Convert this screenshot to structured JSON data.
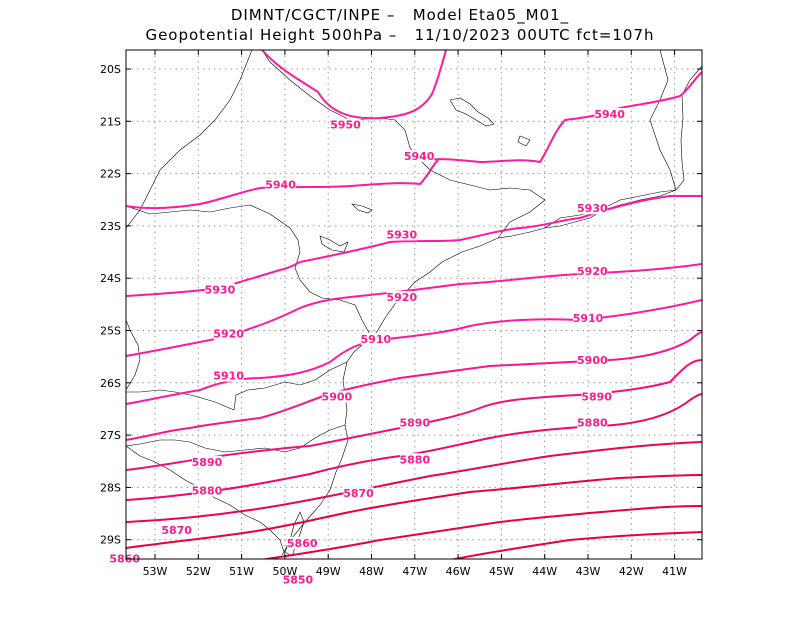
{
  "title": {
    "line1": "DIMNT/CGCT/INPE –   Model Eta05_M01_",
    "line2": "Geopotential Height 500hPa –   11/10/2023 00UTC fct=107h"
  },
  "colors": {
    "contour_high": "#ff1a9c",
    "contour_low": "#e8003c",
    "coast": "#000000",
    "grid": "#999999"
  },
  "axes": {
    "lat_labels": [
      "20S",
      "21S",
      "22S",
      "23S",
      "24S",
      "25S",
      "26S",
      "27S",
      "28S",
      "29S"
    ],
    "lon_labels": [
      "53W",
      "52W",
      "51W",
      "50W",
      "49W",
      "48W",
      "47W",
      "46W",
      "45W",
      "44W",
      "43W",
      "42W",
      "41W"
    ]
  },
  "contour_labels": [
    {
      "text": "5950",
      "lon": -48.6,
      "lat": -21.1
    },
    {
      "text": "5940",
      "lon": -42.5,
      "lat": -20.9
    },
    {
      "text": "5940",
      "lon": -46.9,
      "lat": -21.7
    },
    {
      "text": "5940",
      "lon": -50.1,
      "lat": -22.25
    },
    {
      "text": "5930",
      "lon": -42.9,
      "lat": -22.7
    },
    {
      "text": "5930",
      "lon": -47.3,
      "lat": -23.2
    },
    {
      "text": "5920",
      "lon": -42.9,
      "lat": -23.9
    },
    {
      "text": "5930",
      "lon": -51.5,
      "lat": -24.25
    },
    {
      "text": "5920",
      "lon": -47.3,
      "lat": -24.4
    },
    {
      "text": "5910",
      "lon": -43.0,
      "lat": -24.8
    },
    {
      "text": "5920",
      "lon": -51.3,
      "lat": -25.1
    },
    {
      "text": "5910",
      "lon": -47.9,
      "lat": -25.2
    },
    {
      "text": "5900",
      "lon": -42.9,
      "lat": -25.6
    },
    {
      "text": "5910",
      "lon": -51.3,
      "lat": -25.9
    },
    {
      "text": "5890",
      "lon": -42.8,
      "lat": -26.3
    },
    {
      "text": "5900",
      "lon": -48.8,
      "lat": -26.3
    },
    {
      "text": "5880",
      "lon": -42.9,
      "lat": -26.8
    },
    {
      "text": "5890",
      "lon": -47.0,
      "lat": -26.8
    },
    {
      "text": "5880",
      "lon": -47.0,
      "lat": -27.5
    },
    {
      "text": "5890",
      "lon": -51.8,
      "lat": -27.55
    },
    {
      "text": "5880",
      "lon": -51.8,
      "lat": -28.1
    },
    {
      "text": "5870",
      "lon": -48.3,
      "lat": -28.15
    },
    {
      "text": "5870",
      "lon": -52.5,
      "lat": -28.85
    },
    {
      "text": "5860",
      "lon": -49.6,
      "lat": -29.1
    },
    {
      "text": "5860",
      "lon": -53.7,
      "lat": -29.4
    },
    {
      "text": "5850",
      "lon": -49.7,
      "lat": -29.8
    }
  ]
}
